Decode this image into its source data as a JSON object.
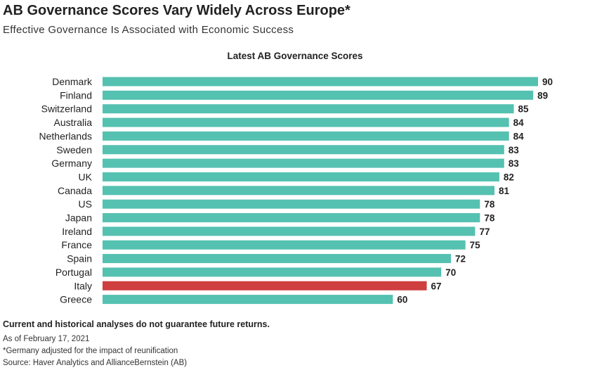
{
  "header": {
    "title": "AB Governance Scores Vary Widely Across Europe*",
    "subtitle": "Effective Governance Is Associated with Economic Success"
  },
  "chart_data": {
    "type": "bar",
    "orientation": "horizontal",
    "title": "Latest AB Governance Scores",
    "categories": [
      "Denmark",
      "Finland",
      "Switzerland",
      "Australia",
      "Netherlands",
      "Sweden",
      "Germany",
      "UK",
      "Canada",
      "US",
      "Japan",
      "Ireland",
      "France",
      "Spain",
      "Portugal",
      "Italy",
      "Greece"
    ],
    "values": [
      90,
      89,
      85,
      84,
      84,
      83,
      83,
      82,
      81,
      78,
      78,
      77,
      75,
      72,
      70,
      67,
      60
    ],
    "colors": {
      "default": "#55c1b0",
      "highlight": "#cf3f3f"
    },
    "highlight_category": "Italy",
    "grid": false,
    "data_labels": true
  },
  "footer": {
    "disclaimer": "Current and historical analyses do not guarantee future returns.",
    "as_of": "As of February 17, 2021",
    "note": "*Germany adjusted for the impact of reunification",
    "source": "Source: Haver Analytics and AllianceBernstein (AB)"
  }
}
